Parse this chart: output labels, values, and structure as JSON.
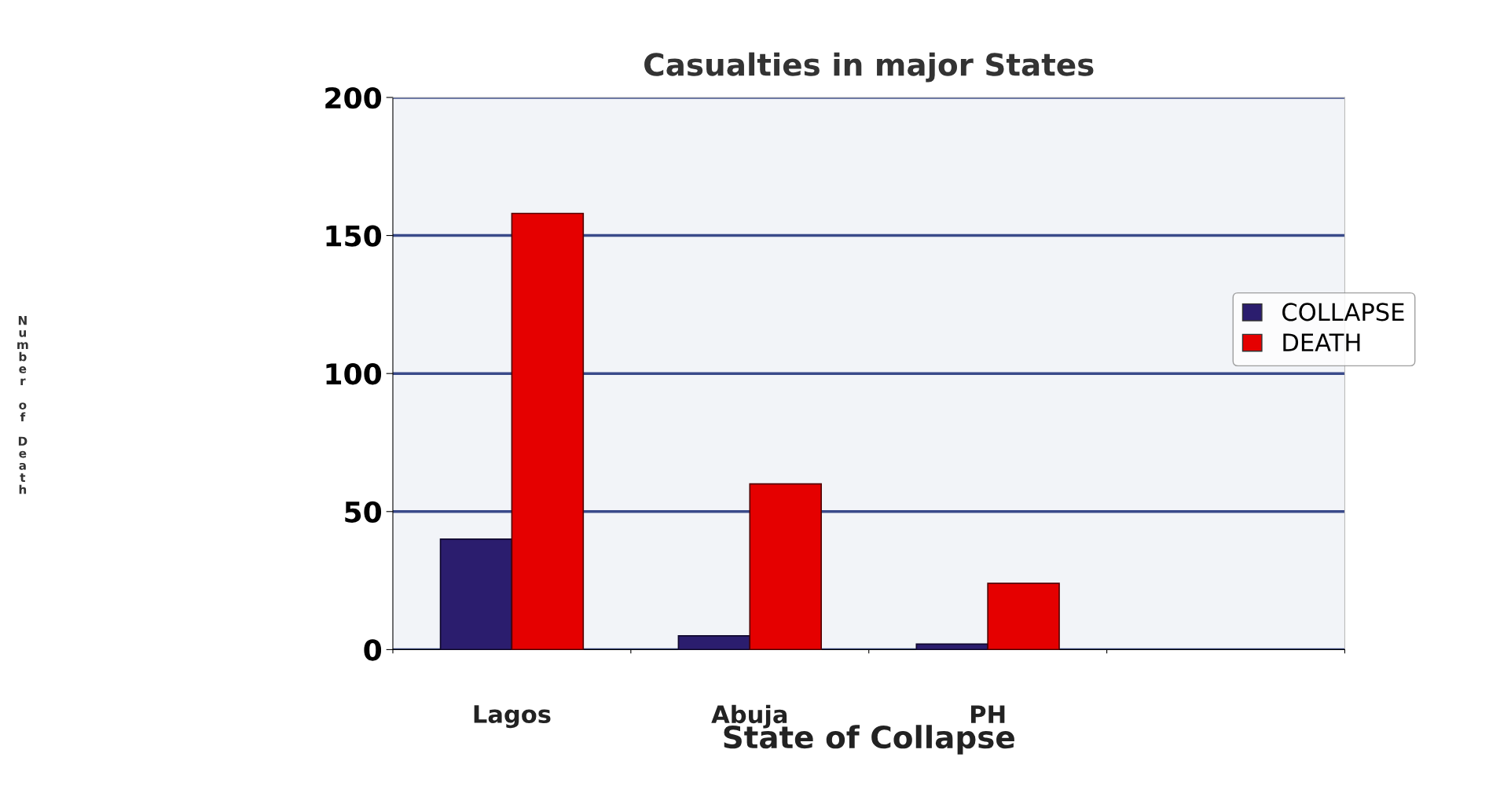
{
  "chart_data": {
    "type": "bar",
    "title": "Casualties in major States",
    "xlabel": "State of Collapse",
    "ylabel": "Number of Death",
    "categories": [
      "Lagos",
      "Abuja",
      "PH",
      null
    ],
    "series": [
      {
        "name": "COLLAPSE",
        "color": "#2b1d6e",
        "values": [
          40,
          5,
          2,
          null
        ]
      },
      {
        "name": "DEATH",
        "color": "#e50000",
        "values": [
          158,
          60,
          24,
          null
        ]
      }
    ],
    "ylim": [
      0,
      200
    ],
    "yticks": [
      0,
      50,
      100,
      150,
      200
    ],
    "grid": "y",
    "legend": "right"
  }
}
